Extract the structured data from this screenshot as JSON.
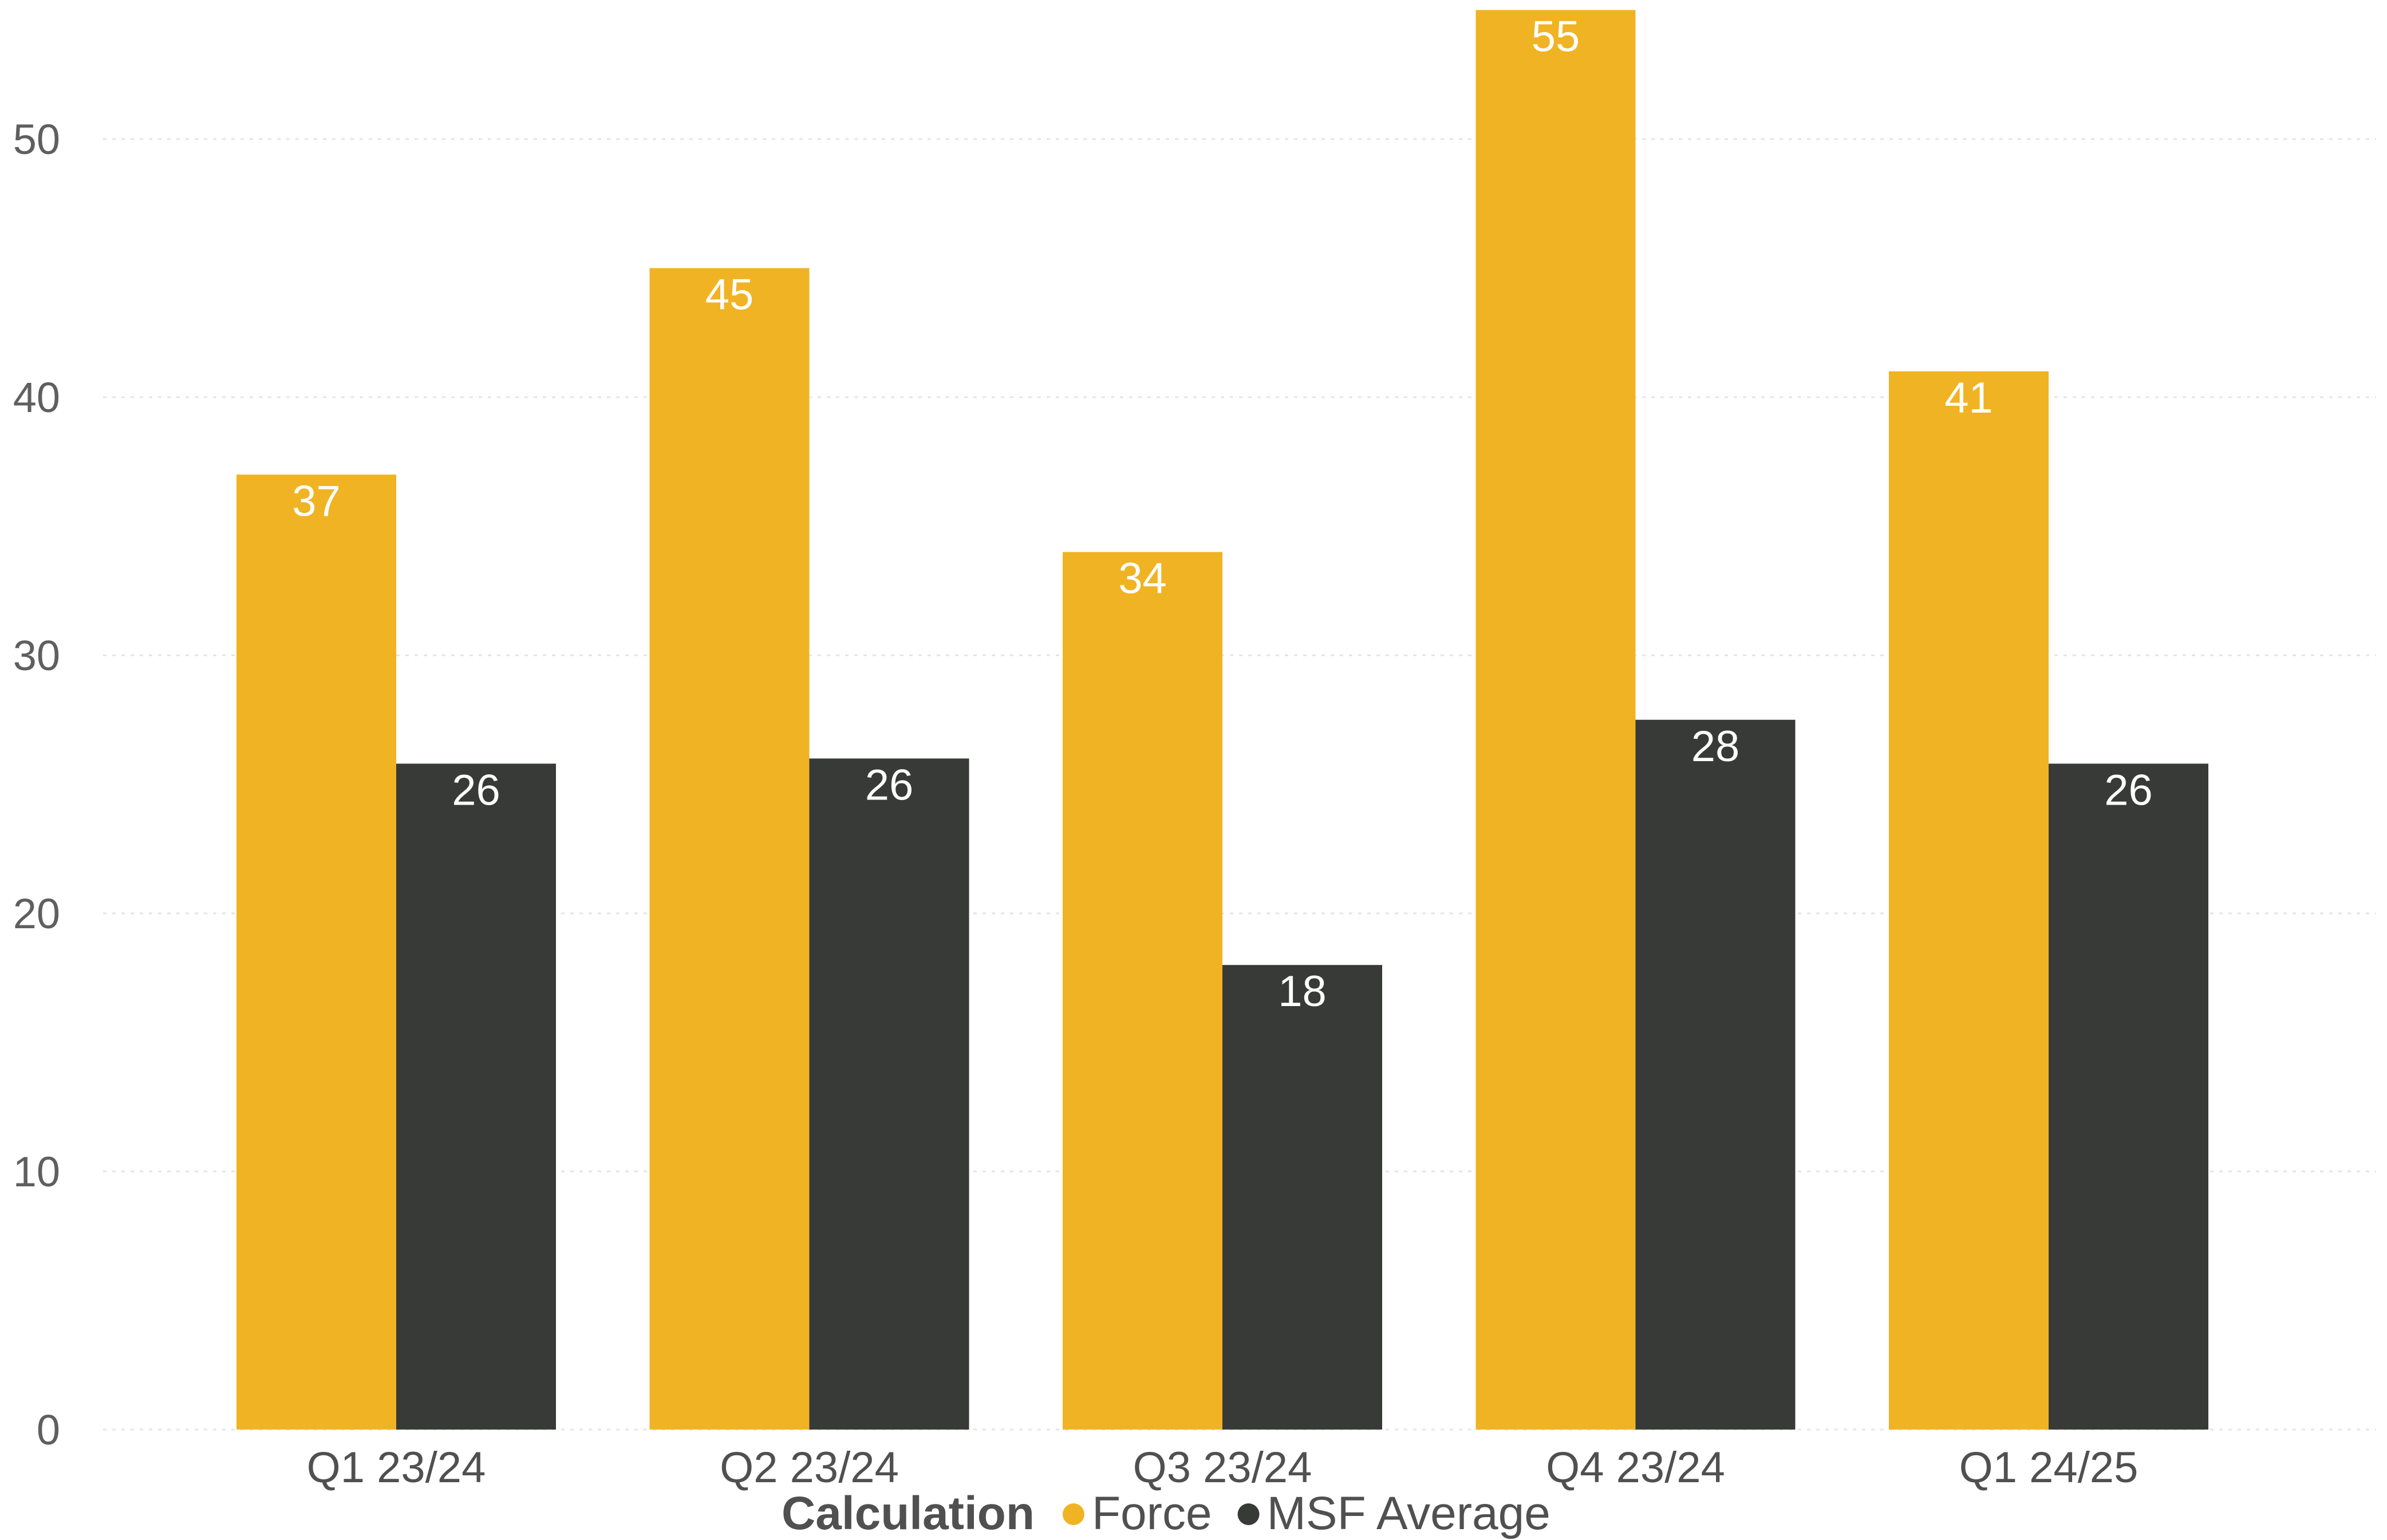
{
  "chart_data": {
    "type": "bar",
    "categories": [
      "Q1 23/24",
      "Q2 23/24",
      "Q3 23/24",
      "Q4 23/24",
      "Q1 24/25"
    ],
    "series": [
      {
        "name": "Force",
        "values": [
          37,
          45,
          34,
          55,
          41
        ],
        "labels": [
          "37",
          "45",
          "34",
          "55",
          "41"
        ],
        "color": "#F0B323"
      },
      {
        "name": "MSF Average",
        "values": [
          25.8,
          26.0,
          18.0,
          27.5,
          25.8
        ],
        "labels": [
          "26",
          "26",
          "18",
          "28",
          "26"
        ],
        "color": "#383A37"
      }
    ],
    "ylim": [
      0,
      55
    ],
    "yticks": [
      0,
      10,
      20,
      30,
      40,
      50
    ],
    "grid": true,
    "legend": {
      "title": "Calculation",
      "position": "bottom"
    }
  }
}
